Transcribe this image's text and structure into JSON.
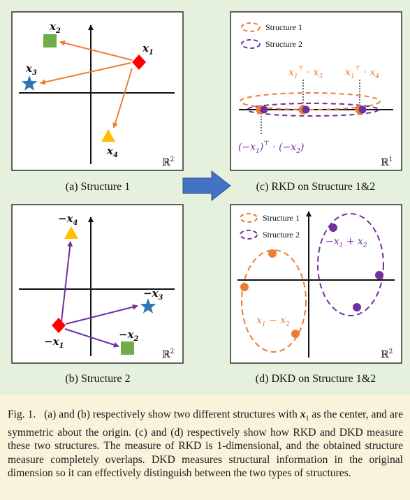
{
  "panels": {
    "a": {
      "label": "(a) Structure 1",
      "points": [
        "x_1",
        "x_2",
        "x_3",
        "x_4"
      ],
      "space": "ℝ",
      "space_exp": "2"
    },
    "b": {
      "label": "(b) Structure 2",
      "points": [
        "−x_1",
        "−x_2",
        "−x_3",
        "−x_4"
      ],
      "space": "ℝ",
      "space_exp": "2"
    },
    "c": {
      "label": "(c) RKD on Structure 1&2",
      "legend": [
        "Structure 1",
        "Structure 2"
      ],
      "annotations": [
        "x_1^⊤ · x_3",
        "x_1^⊤ · x_4",
        "(−x_1)^⊤ · (−x_2)"
      ],
      "space": "ℝ",
      "space_exp": "1"
    },
    "d": {
      "label": "(d) DKD on Structure 1&2",
      "legend": [
        "Structure 1",
        "Structure 2"
      ],
      "annotations": [
        "x_1 − x_2",
        "−x_1 + x_2"
      ],
      "space": "ℝ",
      "space_exp": "2"
    }
  },
  "colors": {
    "structure1": "#ed7d31",
    "structure2": "#7030a0",
    "red": "#ff0000",
    "green": "#70ad47",
    "blue": "#2e75b6",
    "yellow": "#ffc000",
    "arrow_blue": "#4472c4"
  },
  "caption": {
    "fig": "Fig. 1.",
    "text_1": "(a) and (b) respectively show two different structures with",
    "var": "x",
    "var_sub": "1",
    "text_2": "as the center, and are symmetric about the origin. (c) and (d) respectively show how RKD and DKD measure these two structures. The measure of RKD is 1-dimensional, and the obtained structure measure completely overlaps. DKD measures structural information in the original dimension so it can effectively distinguish between the two types of structures."
  }
}
